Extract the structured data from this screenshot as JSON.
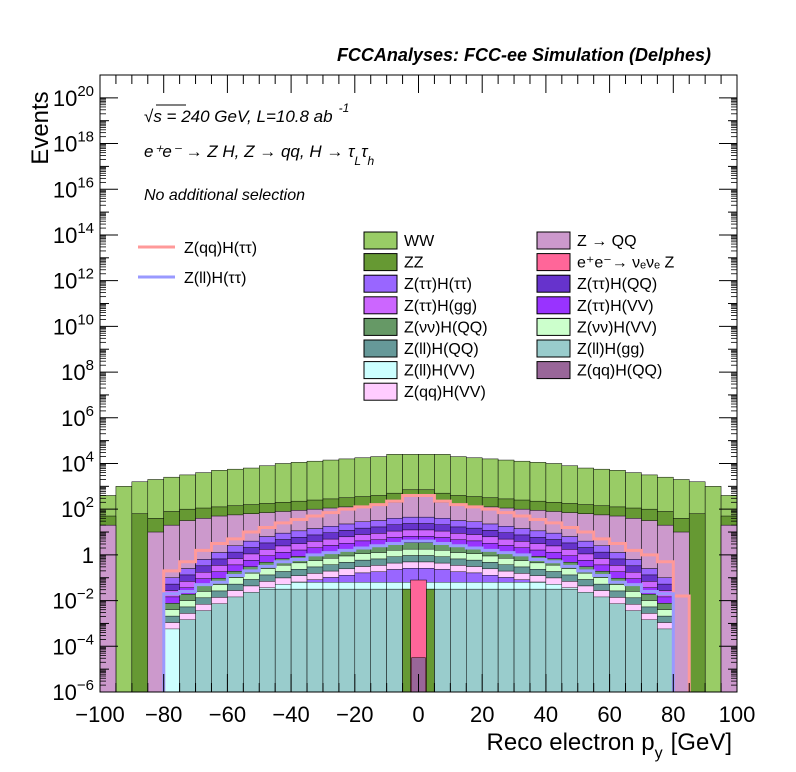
{
  "chart_data": {
    "type": "histogram",
    "title": "FCCAnalyses: FCC-ee Simulation (Delphes)",
    "xlabel": "Reco electron p",
    "xlabel_sub": "y",
    "xlabel_unit": "[GeV]",
    "ylabel": "Events",
    "x_range": [
      -100,
      100
    ],
    "y_range": [
      1e-06,
      1e+21
    ],
    "y_scale": "log",
    "x_ticks": [
      -100,
      -80,
      -60,
      -40,
      -20,
      0,
      20,
      40,
      60,
      80,
      100
    ],
    "y_ticks": [
      "10^-6",
      "10^-4",
      "10^-2",
      "1",
      "10^2",
      "10^4",
      "10^6",
      "10^8",
      "10^10",
      "10^12",
      "10^14",
      "10^16",
      "10^18",
      "10^20"
    ],
    "annotations": {
      "energy": "√s = 240 GeV, L=10.8 ab",
      "energy_sup": "-1",
      "process": "e⁺e⁻ → Z H, Z → qq, H → τ",
      "process_tail_sub1": "L",
      "process_tail_mid": "τ",
      "process_tail_sub2": "h",
      "selection": "No additional selection"
    },
    "stacked_legend": [
      {
        "name": "WW",
        "color": "#99cc66"
      },
      {
        "name": "Z → QQ",
        "color": "#cc99cc"
      },
      {
        "name": "ZZ",
        "color": "#669933"
      },
      {
        "name": "e⁺e⁻→ νₑνₑ Z",
        "color": "#ff6699"
      },
      {
        "name": "Z(ττ)H(ττ)",
        "color": "#9966ff"
      },
      {
        "name": "Z(ττ)H(QQ)",
        "color": "#6633cc"
      },
      {
        "name": "Z(ττ)H(gg)",
        "color": "#cc66ff"
      },
      {
        "name": "Z(ττ)H(VV)",
        "color": "#9933ff"
      },
      {
        "name": "Z(νν)H(QQ)",
        "color": "#669966"
      },
      {
        "name": "Z(νν)H(VV)",
        "color": "#ccffcc"
      },
      {
        "name": "Z(ll)H(QQ)",
        "color": "#669999"
      },
      {
        "name": "Z(ll)H(gg)",
        "color": "#99cccc"
      },
      {
        "name": "Z(ll)H(VV)",
        "color": "#ccffff"
      },
      {
        "name": "Z(qq)H(QQ)",
        "color": "#996699"
      },
      {
        "name": "Z(qq)H(VV)",
        "color": "#ffccff"
      }
    ],
    "line_legend": [
      {
        "name": "Z(qq)H(ττ)",
        "color": "#ff9999"
      },
      {
        "name": "Z(ll)H(ττ)",
        "color": "#9999ff"
      }
    ],
    "bins": [
      -100,
      -95,
      -90,
      -85,
      -80,
      -75,
      -70,
      -65,
      -60,
      -55,
      -50,
      -45,
      -40,
      -35,
      -30,
      -25,
      -20,
      -15,
      -10,
      -5,
      0,
      5,
      10,
      15,
      20,
      25,
      30,
      35,
      40,
      45,
      50,
      55,
      60,
      65,
      70,
      75,
      80,
      85,
      90,
      95,
      100
    ],
    "stack_total_log10": [
      2.6,
      3.0,
      3.2,
      3.3,
      3.4,
      3.5,
      3.6,
      3.7,
      3.75,
      3.8,
      3.9,
      4.0,
      4.05,
      4.1,
      4.15,
      4.2,
      4.25,
      4.3,
      4.4,
      4.4,
      4.4,
      4.4,
      4.3,
      4.25,
      4.2,
      4.15,
      4.1,
      4.05,
      4.0,
      3.9,
      3.8,
      3.75,
      3.7,
      3.6,
      3.5,
      3.4,
      3.3,
      3.2,
      3.0,
      2.6
    ],
    "zz_top_log10": [
      1.7,
      -6,
      1.8,
      1.6,
      1.9,
      2.0,
      2.05,
      2.1,
      2.15,
      2.2,
      2.25,
      2.3,
      2.35,
      2.4,
      2.45,
      2.5,
      2.55,
      2.6,
      2.7,
      2.85,
      2.85,
      2.7,
      2.6,
      2.55,
      2.5,
      2.45,
      2.4,
      2.35,
      2.3,
      2.25,
      2.2,
      2.15,
      2.1,
      2.05,
      2.0,
      1.9,
      1.6,
      1.8,
      -6,
      1.7
    ],
    "zqq_top_log10": [
      1.3,
      -6,
      -6,
      1.0,
      1.3,
      1.5,
      1.6,
      1.7,
      1.75,
      1.8,
      1.85,
      1.9,
      1.95,
      2.0,
      2.05,
      2.1,
      2.15,
      2.2,
      2.3,
      2.55,
      2.55,
      2.3,
      2.2,
      2.15,
      2.1,
      2.05,
      2.0,
      1.95,
      1.9,
      1.85,
      1.8,
      1.75,
      1.7,
      1.6,
      1.5,
      1.3,
      1.0,
      -6,
      -6,
      1.3
    ],
    "signal_top_log10": [
      -6,
      -6,
      -6,
      -6,
      -1.0,
      -0.6,
      -0.2,
      0.1,
      0.4,
      0.6,
      0.8,
      0.95,
      1.05,
      1.15,
      1.25,
      1.35,
      1.45,
      1.5,
      1.6,
      1.65,
      1.65,
      1.6,
      1.5,
      1.45,
      1.35,
      1.25,
      1.15,
      1.05,
      0.95,
      0.8,
      0.6,
      0.4,
      0.1,
      -0.2,
      -0.6,
      -1.0,
      -6,
      -6,
      -6,
      -6
    ],
    "llgg_top_log10": [
      -6,
      -6,
      -6,
      -6,
      -6,
      -2.0,
      -1.8,
      -1.7,
      -1.5,
      -1.5,
      -1.5,
      -1.5,
      -1.5,
      -1.5,
      -1.5,
      -1.5,
      -1.5,
      -1.5,
      -1.5,
      -1.5,
      -1.5,
      -1.5,
      -1.5,
      -1.5,
      -1.5,
      -1.5,
      -1.5,
      -1.5,
      -1.5,
      -1.5,
      -1.5,
      -1.5,
      -1.5,
      -1.7,
      -1.8,
      -2.0,
      -6,
      -6,
      -6,
      -6
    ],
    "zqqhtt_log10": [
      -6,
      -6,
      -6,
      -6,
      -0.7,
      -0.3,
      0.2,
      0.5,
      0.7,
      1.0,
      1.2,
      1.4,
      1.55,
      1.7,
      1.85,
      2.0,
      2.1,
      2.2,
      2.35,
      2.6,
      2.6,
      2.35,
      2.2,
      2.1,
      2.0,
      1.85,
      1.7,
      1.55,
      1.4,
      1.2,
      1.0,
      0.7,
      0.5,
      0.2,
      0.0,
      -0.3,
      -1.8,
      -6,
      -6,
      -6
    ],
    "zllhtt_log10": [
      -6,
      -6,
      -6,
      -6,
      -1.7,
      -1.6,
      -1.3,
      -1.2,
      -0.9,
      -0.7,
      -0.5,
      -0.3,
      -0.2,
      0.0,
      0.1,
      0.2,
      0.3,
      0.4,
      0.5,
      0.6,
      0.6,
      0.5,
      0.4,
      0.3,
      0.2,
      0.1,
      0.0,
      -0.2,
      -0.3,
      -0.5,
      -0.7,
      -0.9,
      -1.2,
      -1.3,
      -1.6,
      -1.7,
      -6,
      -6,
      -6,
      -6
    ]
  }
}
